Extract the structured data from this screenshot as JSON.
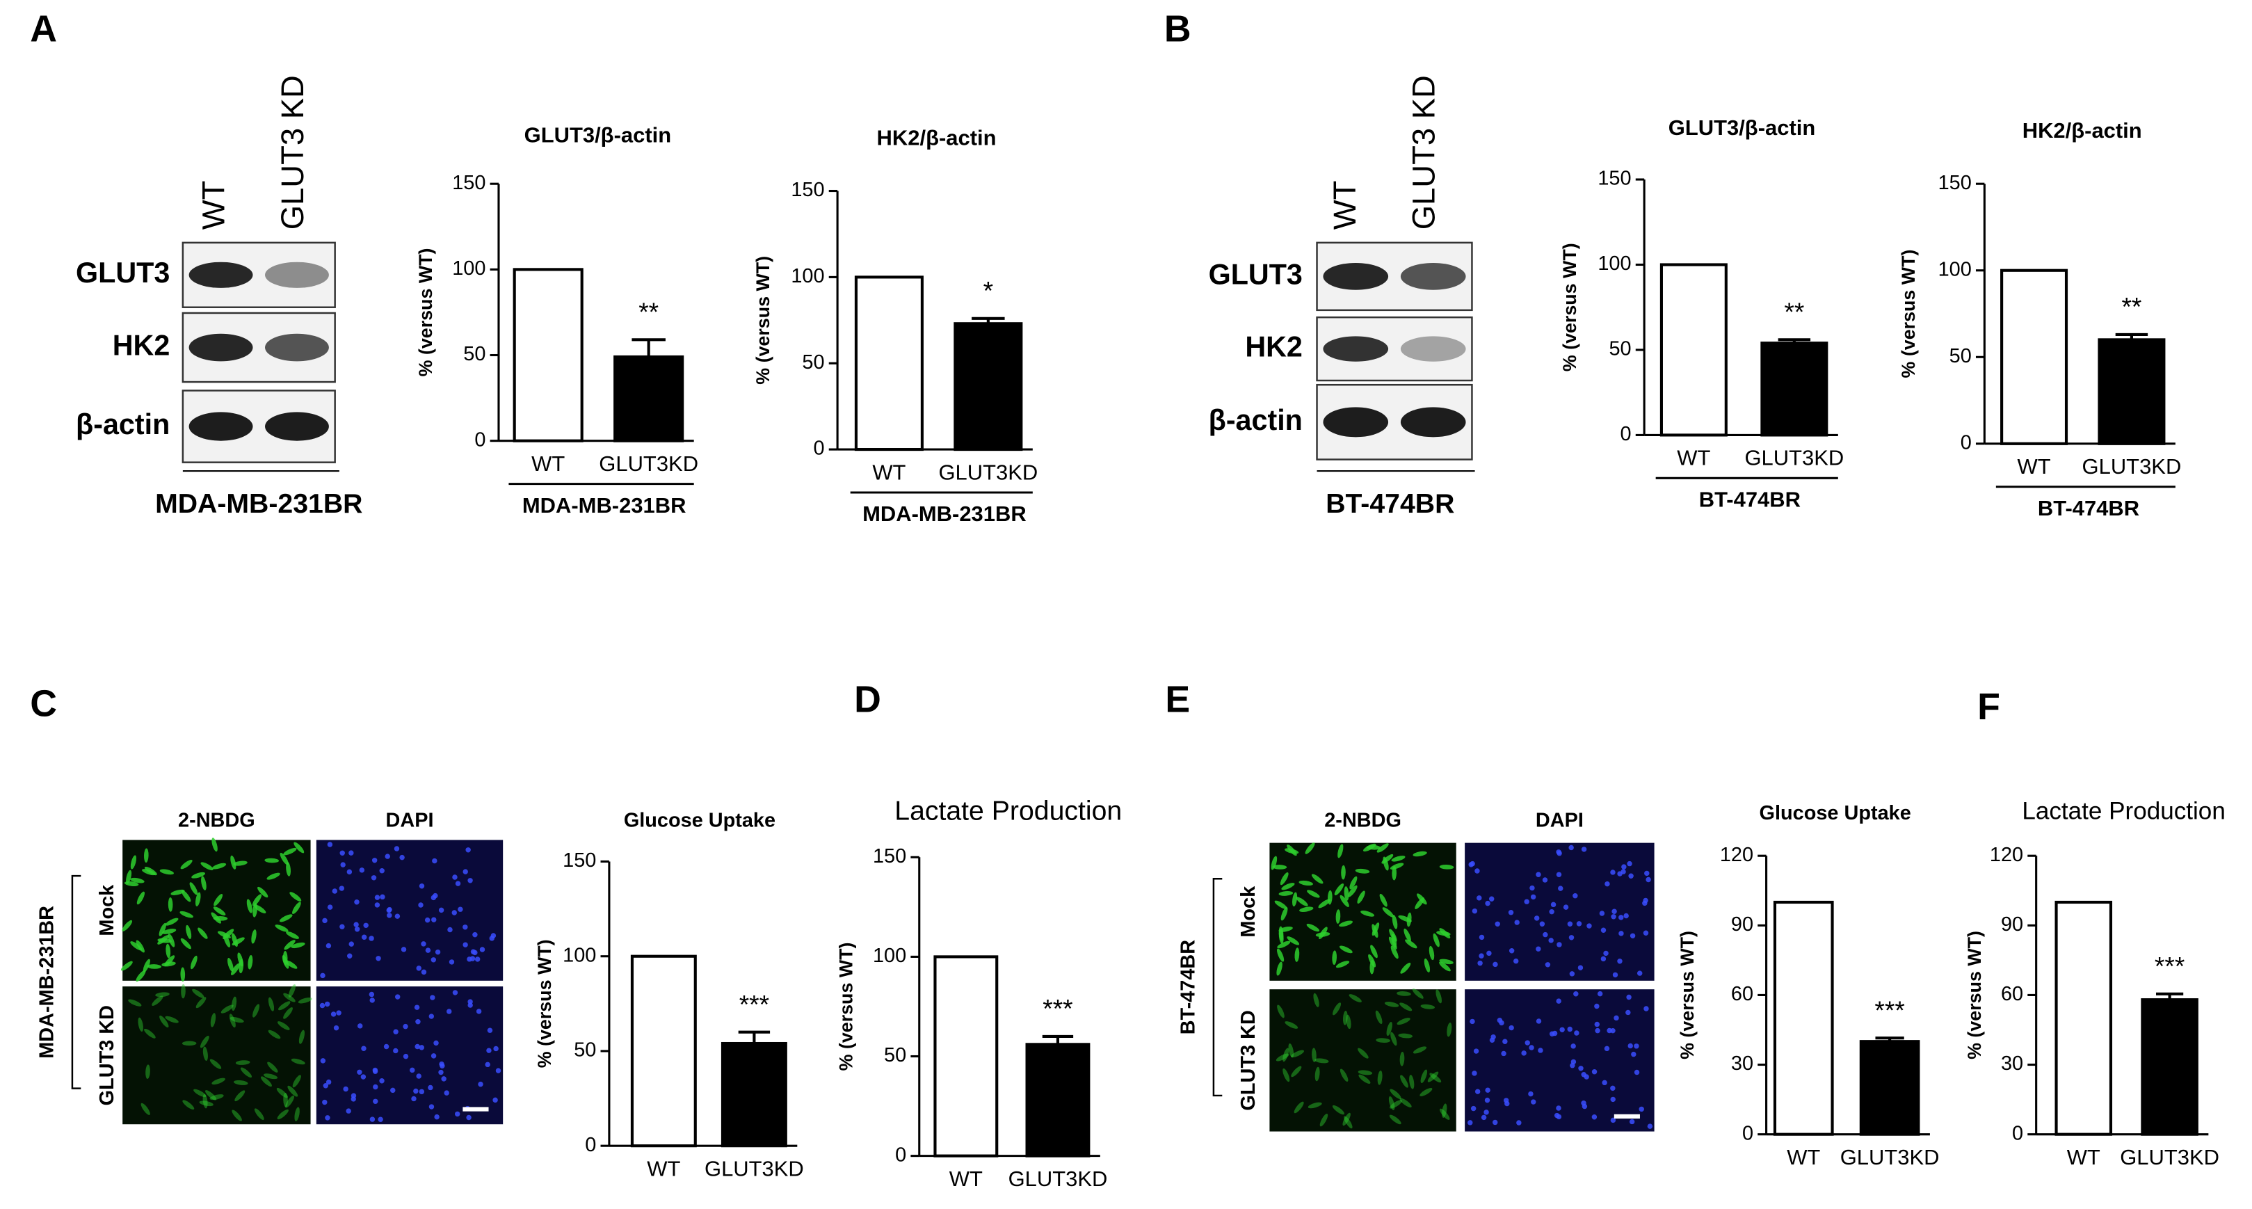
{
  "panel_labels": [
    "A",
    "B",
    "C",
    "D",
    "E",
    "F"
  ],
  "blots": [
    {
      "lanes": [
        "WT",
        "GLUT3 KD"
      ],
      "proteins": [
        "GLUT3",
        "HK2",
        "β-actin"
      ],
      "cell_line": "MDA-MB-231BR"
    },
    {
      "lanes": [
        "WT",
        "GLUT3 KD"
      ],
      "proteins": [
        "GLUT3",
        "HK2",
        "β-actin"
      ],
      "cell_line": "BT-474BR"
    }
  ],
  "microscopy": [
    {
      "channels": [
        "2-NBDG",
        "DAPI"
      ],
      "conditions": [
        "Mock",
        "GLUT3 KD"
      ],
      "cell_line": "MDA-MB-231BR"
    },
    {
      "channels": [
        "2-NBDG",
        "DAPI"
      ],
      "conditions": [
        "Mock",
        "GLUT3 KD"
      ],
      "cell_line": "BT-474BR"
    }
  ],
  "chart_data": [
    {
      "type": "bar",
      "title": "GLUT3/β-actin",
      "y_label": "% (versus WT)",
      "categories": [
        "WT",
        "GLUT3KD"
      ],
      "values": [
        100,
        49
      ],
      "errors": [
        null,
        10
      ],
      "colors": [
        "#ffffff",
        "#000000"
      ],
      "significance": "**",
      "group_label": "MDA-MB-231BR",
      "ylim": [
        0,
        150
      ],
      "yticks": [
        0,
        50,
        100,
        150
      ]
    },
    {
      "type": "bar",
      "title": "HK2/β-actin",
      "y_label": "% (versus WT)",
      "categories": [
        "WT",
        "GLUT3KD"
      ],
      "values": [
        100,
        73
      ],
      "errors": [
        null,
        3
      ],
      "colors": [
        "#ffffff",
        "#000000"
      ],
      "significance": "*",
      "group_label": "MDA-MB-231BR",
      "ylim": [
        0,
        150
      ],
      "yticks": [
        0,
        50,
        100,
        150
      ]
    },
    {
      "type": "bar",
      "title": "GLUT3/β-actin",
      "y_label": "% (versus WT)",
      "categories": [
        "WT",
        "GLUT3KD"
      ],
      "values": [
        100,
        54
      ],
      "errors": [
        null,
        2
      ],
      "colors": [
        "#ffffff",
        "#000000"
      ],
      "significance": "**",
      "group_label": "BT-474BR",
      "ylim": [
        0,
        150
      ],
      "yticks": [
        0,
        50,
        100,
        150
      ]
    },
    {
      "type": "bar",
      "title": "HK2/β-actin",
      "y_label": "% (versus WT)",
      "categories": [
        "WT",
        "GLUT3KD"
      ],
      "values": [
        100,
        60
      ],
      "errors": [
        null,
        3
      ],
      "colors": [
        "#ffffff",
        "#000000"
      ],
      "significance": "**",
      "group_label": "BT-474BR",
      "ylim": [
        0,
        150
      ],
      "yticks": [
        0,
        50,
        100,
        150
      ]
    },
    {
      "type": "bar",
      "title": "Glucose Uptake",
      "y_label": "% (versus WT)",
      "categories": [
        "WT",
        "GLUT3KD"
      ],
      "values": [
        100,
        54
      ],
      "errors": [
        null,
        6
      ],
      "colors": [
        "#ffffff",
        "#000000"
      ],
      "significance": "***",
      "ylim": [
        0,
        150
      ],
      "yticks": [
        0,
        50,
        100,
        150
      ]
    },
    {
      "type": "bar",
      "title": "Lactate Production",
      "y_label": "% (versus WT)",
      "categories": [
        "WT",
        "GLUT3KD"
      ],
      "values": [
        100,
        56
      ],
      "errors": [
        null,
        4
      ],
      "colors": [
        "#ffffff",
        "#000000"
      ],
      "significance": "***",
      "ylim": [
        0,
        150
      ],
      "yticks": [
        0,
        50,
        100,
        150
      ]
    },
    {
      "type": "bar",
      "title": "Glucose Uptake",
      "y_label": "% (versus WT)",
      "categories": [
        "WT",
        "GLUT3KD"
      ],
      "values": [
        100,
        40
      ],
      "errors": [
        null,
        1.5
      ],
      "colors": [
        "#ffffff",
        "#000000"
      ],
      "significance": "***",
      "ylim": [
        0,
        120
      ],
      "yticks": [
        0,
        30,
        60,
        90,
        120
      ]
    },
    {
      "type": "bar",
      "title": "Lactate Production",
      "y_label": "% (versus WT)",
      "categories": [
        "WT",
        "GLUT3KD"
      ],
      "values": [
        100,
        58
      ],
      "errors": [
        null,
        2.5
      ],
      "colors": [
        "#ffffff",
        "#000000"
      ],
      "significance": "***",
      "ylim": [
        0,
        120
      ],
      "yticks": [
        0,
        30,
        60,
        90,
        120
      ]
    }
  ]
}
